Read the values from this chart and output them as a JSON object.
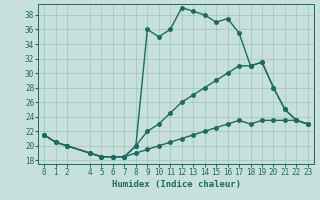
{
  "xlabel": "Humidex (Indice chaleur)",
  "background_color": "#c8e0dc",
  "grid_color": "#9cc4bc",
  "line_color": "#1a6b60",
  "xlim": [
    -0.5,
    23.5
  ],
  "ylim": [
    17.5,
    39.5
  ],
  "yticks": [
    18,
    20,
    22,
    24,
    26,
    28,
    30,
    32,
    34,
    36,
    38
  ],
  "xticks": [
    0,
    1,
    2,
    4,
    5,
    6,
    7,
    8,
    9,
    10,
    11,
    12,
    13,
    14,
    15,
    16,
    17,
    18,
    19,
    20,
    21,
    22,
    23
  ],
  "line1_x": [
    0,
    1,
    2,
    4,
    5,
    6,
    7,
    8,
    9,
    10,
    11,
    12,
    13,
    14,
    15,
    16,
    17,
    18,
    19,
    20,
    21,
    22,
    23
  ],
  "line1_y": [
    21.5,
    20.5,
    20.0,
    19.0,
    18.5,
    18.5,
    18.5,
    20.0,
    36.0,
    35.0,
    36.0,
    39.0,
    38.5,
    38.0,
    37.0,
    37.5,
    35.5,
    31.0,
    31.5,
    28.0,
    25.0,
    23.5,
    23.0
  ],
  "line2_x": [
    0,
    1,
    2,
    4,
    5,
    6,
    7,
    8,
    9,
    10,
    11,
    12,
    13,
    14,
    15,
    16,
    17,
    18,
    19,
    20,
    21,
    22,
    23
  ],
  "line2_y": [
    21.5,
    20.5,
    20.0,
    19.0,
    18.5,
    18.5,
    18.5,
    20.0,
    22.0,
    23.0,
    24.5,
    26.0,
    27.0,
    28.0,
    29.0,
    30.0,
    31.0,
    31.0,
    31.5,
    28.0,
    25.0,
    23.5,
    23.0
  ],
  "line3_x": [
    0,
    1,
    2,
    4,
    5,
    6,
    7,
    8,
    9,
    10,
    11,
    12,
    13,
    14,
    15,
    16,
    17,
    18,
    19,
    20,
    21,
    22,
    23
  ],
  "line3_y": [
    21.5,
    20.5,
    20.0,
    19.0,
    18.5,
    18.5,
    18.5,
    19.0,
    19.5,
    20.0,
    20.5,
    21.0,
    21.5,
    22.0,
    22.5,
    23.0,
    23.5,
    23.0,
    23.5,
    23.5,
    23.5,
    23.5,
    23.0
  ],
  "marker_size": 2.5,
  "line_width": 1.0,
  "font_size_label": 6.5,
  "font_size_tick": 5.5
}
